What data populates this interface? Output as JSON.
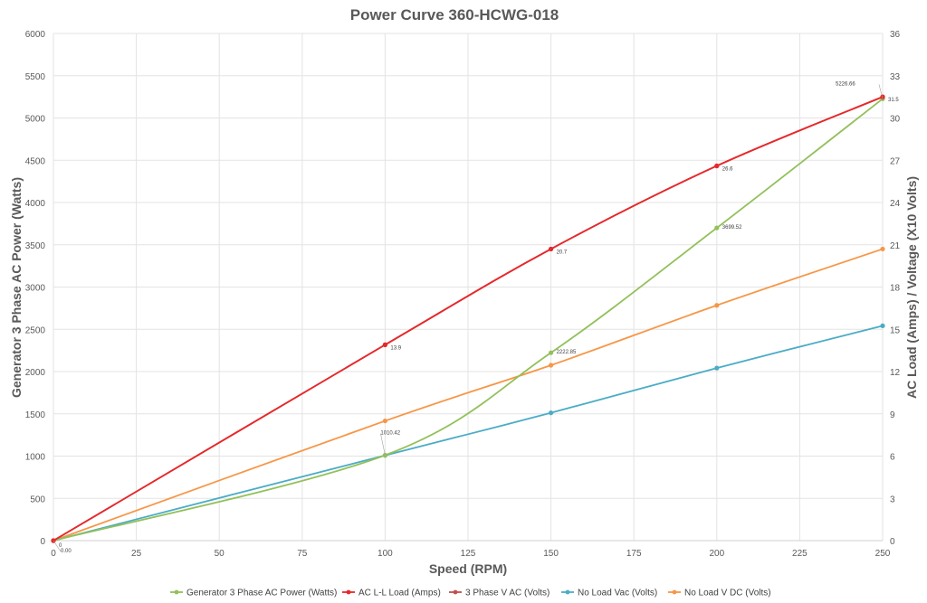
{
  "chart_data": {
    "type": "line",
    "title": "Power Curve 360-HCWG-018",
    "xlabel": "Speed (RPM)",
    "ylabel_left": "Generator 3 Phase AC Power (Watts)",
    "ylabel_right": "AC Load (Amps) / Voltage (X10 Volts)",
    "xlim": [
      0,
      250
    ],
    "ylim_left": [
      0,
      6000
    ],
    "ylim_right": [
      0,
      36
    ],
    "x_ticks": [
      "0",
      "25",
      "50",
      "75",
      "100",
      "125",
      "150",
      "175",
      "200",
      "225",
      "250"
    ],
    "y_left_ticks": [
      "0",
      "500",
      "1000",
      "1500",
      "2000",
      "2500",
      "3000",
      "3500",
      "4000",
      "4500",
      "5000",
      "5500",
      "6000"
    ],
    "y_right_ticks": [
      "0",
      "3",
      "6",
      "9",
      "12",
      "15",
      "18",
      "21",
      "24",
      "27",
      "30",
      "33",
      "36"
    ],
    "grid": true,
    "legend_position": "bottom",
    "series": [
      {
        "name": "Generator 3 Phase AC Power (Watts)",
        "axis": "left",
        "color": "#92c05a",
        "x": [
          0,
          100,
          150,
          200,
          250
        ],
        "y": [
          0,
          1010.42,
          2222.85,
          3699.52,
          5226.66
        ],
        "labels": [
          "0.00",
          "1010.42",
          "2222.85",
          "3699.52",
          "5226.66"
        ]
      },
      {
        "name": "AC L-L Load (Amps)",
        "axis": "right",
        "color": "#e8282b",
        "x": [
          0,
          100,
          150,
          200,
          250
        ],
        "y": [
          0,
          13.9,
          20.7,
          26.6,
          31.5
        ],
        "labels": [
          "0",
          "13.9",
          "20.7",
          "26.6",
          "31.5"
        ]
      },
      {
        "name": "3 Phase V AC  (Volts)",
        "axis": "right",
        "color": "#c0504d",
        "x": [
          0,
          100,
          150,
          200,
          250
        ],
        "y": [
          0,
          13.9,
          20.7,
          26.6,
          31.5
        ],
        "labels": []
      },
      {
        "name": "No Load Vac (Volts)",
        "axis": "right",
        "color": "#4bacc6",
        "x": [
          0,
          100,
          150,
          200,
          250
        ],
        "y": [
          0,
          6.05,
          9.07,
          12.25,
          15.25
        ],
        "labels": []
      },
      {
        "name": "No Load V DC (Volts)",
        "axis": "right",
        "color": "#f79646",
        "x": [
          0,
          100,
          150,
          200,
          250
        ],
        "y": [
          0,
          8.5,
          12.45,
          16.7,
          20.7
        ],
        "labels": []
      }
    ]
  }
}
